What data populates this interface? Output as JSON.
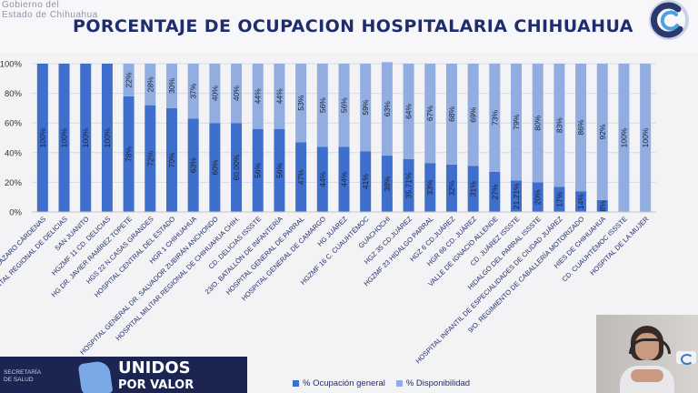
{
  "header": {
    "gov_line1": "Gobierno del",
    "gov_line2": "Estado de Chihuahua"
  },
  "footer": {
    "secretaria_line1": "SECRETARÍA",
    "secretaria_line2": "DE SALUD",
    "brand_line1": "UNIDOS",
    "brand_line2": "POR VALOR"
  },
  "chart_data": {
    "type": "bar",
    "stacked": true,
    "title": "PORCENTAJE DE OCUPACION HOSPITALARIA CHIHUAHUA",
    "ylim": [
      0,
      100
    ],
    "yticks": [
      "0%",
      "20%",
      "40%",
      "60%",
      "80%",
      "100%"
    ],
    "grid": true,
    "legend_position": "bottom",
    "colors": {
      "ocupacion": "#3f6fcc",
      "disponibilidad": "#92ade0",
      "grid": "#d9dbe1",
      "title": "#1f2d6d"
    },
    "categories": [
      "LÁZARO CÁRDENAS",
      "HOSPITAL REGIONAL DE DELICIAS",
      "SAN JUANITO",
      "HGZMF 11 CD. DELICIAS",
      "HG DR. JAVIER RAMÍREZ TOPETE",
      "HGS 22 N.CASAS GRANDES",
      "HOSPITAL CENTRAL DEL ESTADO",
      "HGR 1 CHIHUAHUA",
      "HOSPITAL GENERAL DR. SALVADOR ZUBIRÁN ANCHONDO",
      "HOSPITAL MILITAR REGIONAL DE CHIHUAHUA CHIH.",
      "CD. DELICIAS ISSSTE",
      "23/O. BATALLÓN DE INFANTERÍA",
      "HOSPITAL GENERAL DE PARRAL",
      "HOSPITAL GENERAL DE CAMARGO",
      "HG JUÁREZ",
      "HGZMF 16 C. CUAUHTÉMOC",
      "GUACHOCHI",
      "HGZ 35 CD.JUÁREZ",
      "HGZMF 23 HIDALGO PARRAL",
      "HGZ 6 CD.JUÁREZ",
      "HGR 66 CD. JUÁREZ",
      "VALLE DE IGNACIO ALLENDE",
      "CD. JUÁREZ ISSSTE",
      "HIDALGO DEL PARRAL ISSSTE",
      "HOSPITAL INFANTIL DE ESPECIALIDADES DE CIUDAD JUÁREZ",
      "9/O. REGIMIENTO DE CABALLERÍA MOTORIZADO",
      "HIES DE CHIHUAHUA",
      "CD. CUAUHTÉMOC ISSSTE",
      "HOSPITAL DE LA MUJER"
    ],
    "series": [
      {
        "name": "% Ocupación general",
        "values": [
          100,
          100,
          100,
          100,
          78,
          72,
          70,
          63,
          60,
          60,
          56,
          56,
          47,
          44,
          44,
          41,
          38,
          35.71,
          33,
          32,
          31,
          27,
          21.21,
          20,
          17,
          14,
          8,
          0,
          0
        ],
        "labels": [
          "100%",
          "100%",
          "100%",
          "100%",
          "78%",
          "72%",
          "70%",
          "63%",
          "60%",
          "60.00%",
          "56%",
          "56%",
          "47%",
          "44%",
          "44%",
          "41%",
          "38%",
          "35.71%",
          "33%",
          "32%",
          "31%",
          "27%",
          "21.21%",
          "20%",
          "17%",
          "14%",
          "8%",
          "",
          ""
        ]
      },
      {
        "name": "% Disponibilidad",
        "values": [
          0,
          0,
          0,
          0,
          22,
          28,
          30,
          37,
          40,
          40,
          44,
          44,
          53,
          56,
          56,
          59,
          63,
          64.29,
          67,
          68,
          69,
          73,
          78.79,
          80,
          83,
          86,
          92,
          100,
          100
        ],
        "labels": [
          "",
          "",
          "",
          "",
          "22%",
          "28%",
          "30%",
          "37%",
          "40%",
          "40%",
          "44%",
          "44%",
          "53%",
          "56%",
          "56%",
          "59%",
          "63%",
          "64%",
          "67%",
          "68%",
          "69%",
          "73%",
          "79%",
          "80%",
          "83%",
          "86%",
          "92%",
          "100%",
          "100%"
        ]
      }
    ]
  }
}
